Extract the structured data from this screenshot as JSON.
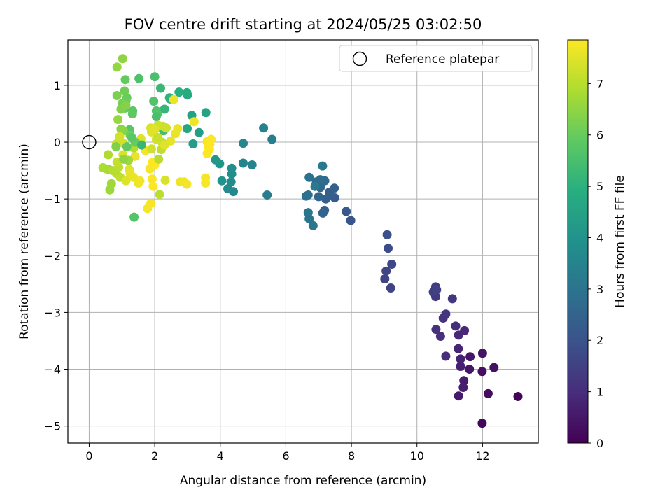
{
  "chart_data": {
    "type": "scatter",
    "title": "FOV centre drift starting at 2024/05/25 03:02:50",
    "xlabel": "Angular distance from reference (arcmin)",
    "ylabel": "Rotation from reference (arcmin)",
    "xlim": [
      -0.65,
      13.7
    ],
    "ylim": [
      -5.3,
      1.8
    ],
    "xticks": [
      0,
      2,
      4,
      6,
      8,
      10,
      12
    ],
    "yticks": [
      -5,
      -4,
      -3,
      -2,
      -1,
      0,
      1
    ],
    "grid": true,
    "legend": {
      "placement": "top-right",
      "entries": [
        "Reference platepar"
      ]
    },
    "reference_point": {
      "x": 0,
      "y": 0,
      "label": "Reference platepar"
    },
    "colorbar": {
      "label": "Hours from first FF file",
      "min": 0,
      "max": 7.85,
      "ticks": [
        0,
        1,
        2,
        3,
        4,
        5,
        6,
        7
      ],
      "colormap": "viridis"
    },
    "points": [
      [
        13.08,
        -4.48,
        0.1
      ],
      [
        11.99,
        -4.95,
        0.15
      ],
      [
        12.17,
        -4.43,
        0.25
      ],
      [
        11.99,
        -4.04,
        0.3
      ],
      [
        12.35,
        -3.97,
        0.35
      ],
      [
        12.0,
        -3.72,
        0.4
      ],
      [
        11.6,
        -4.0,
        0.45
      ],
      [
        11.62,
        -3.78,
        0.5
      ],
      [
        11.27,
        -4.47,
        0.55
      ],
      [
        11.43,
        -4.2,
        0.6
      ],
      [
        11.41,
        -4.32,
        0.65
      ],
      [
        11.33,
        -3.95,
        0.7
      ],
      [
        11.33,
        -3.82,
        0.75
      ],
      [
        11.26,
        -3.64,
        0.8
      ],
      [
        11.27,
        -3.4,
        0.85
      ],
      [
        11.45,
        -3.32,
        0.9
      ],
      [
        11.18,
        -3.24,
        0.95
      ],
      [
        10.88,
        -3.77,
        1.0
      ],
      [
        10.72,
        -3.42,
        1.05
      ],
      [
        10.58,
        -3.3,
        1.1
      ],
      [
        10.8,
        -3.1,
        1.15
      ],
      [
        10.88,
        -3.03,
        1.2
      ],
      [
        11.08,
        -2.76,
        1.25
      ],
      [
        10.57,
        -2.72,
        1.3
      ],
      [
        10.57,
        -2.55,
        1.35
      ],
      [
        10.5,
        -2.64,
        1.45
      ],
      [
        10.6,
        -2.6,
        1.5
      ],
      [
        9.2,
        -2.57,
        1.55
      ],
      [
        9.02,
        -2.41,
        1.6
      ],
      [
        9.06,
        -2.27,
        1.65
      ],
      [
        9.23,
        -2.15,
        1.7
      ],
      [
        9.12,
        -1.87,
        1.8
      ],
      [
        9.09,
        -1.63,
        1.9
      ],
      [
        7.98,
        -1.38,
        2.05
      ],
      [
        7.84,
        -1.22,
        2.15
      ],
      [
        7.49,
        -0.98,
        2.25
      ],
      [
        7.33,
        -0.88,
        2.3
      ],
      [
        7.48,
        -0.81,
        2.35
      ],
      [
        7.22,
        -1.0,
        2.4
      ],
      [
        7.18,
        -1.2,
        2.45
      ],
      [
        7.13,
        -1.25,
        2.5
      ],
      [
        7.0,
        -0.96,
        2.55
      ],
      [
        7.05,
        -0.8,
        2.6
      ],
      [
        7.08,
        -0.72,
        2.65
      ],
      [
        7.19,
        -0.68,
        2.7
      ],
      [
        6.93,
        -0.7,
        2.75
      ],
      [
        7.05,
        -0.66,
        2.8
      ],
      [
        6.68,
        -0.93,
        2.85
      ],
      [
        6.62,
        -0.95,
        2.9
      ],
      [
        6.71,
        -0.62,
        2.95
      ],
      [
        6.71,
        -1.35,
        3.0
      ],
      [
        6.68,
        -1.24,
        3.05
      ],
      [
        6.83,
        -1.47,
        3.1
      ],
      [
        6.89,
        -0.78,
        3.15
      ],
      [
        7.12,
        -0.42,
        3.2
      ],
      [
        5.43,
        -0.93,
        3.3
      ],
      [
        5.58,
        0.05,
        3.35
      ],
      [
        5.32,
        0.25,
        3.4
      ],
      [
        4.97,
        -0.4,
        3.5
      ],
      [
        4.7,
        -0.37,
        3.55
      ],
      [
        4.7,
        -0.02,
        3.6
      ],
      [
        4.4,
        -0.87,
        3.65
      ],
      [
        4.23,
        -0.82,
        3.7
      ],
      [
        4.33,
        -0.7,
        3.75
      ],
      [
        4.35,
        -0.56,
        3.8
      ],
      [
        4.35,
        -0.46,
        3.85
      ],
      [
        4.05,
        -0.68,
        3.95
      ],
      [
        3.98,
        -0.38,
        4.05
      ],
      [
        3.85,
        -0.31,
        4.15
      ],
      [
        3.17,
        -0.03,
        4.3
      ],
      [
        3.35,
        0.17,
        4.4
      ],
      [
        3.13,
        0.47,
        4.5
      ],
      [
        3.56,
        0.52,
        4.55
      ],
      [
        2.99,
        0.24,
        4.65
      ],
      [
        3.0,
        0.83,
        4.75
      ],
      [
        2.98,
        0.87,
        4.8
      ],
      [
        2.74,
        0.88,
        4.9
      ],
      [
        2.45,
        0.78,
        5.0
      ],
      [
        2.47,
        0.76,
        5.05
      ],
      [
        2.3,
        0.58,
        5.15
      ],
      [
        2.18,
        0.95,
        5.25
      ],
      [
        2.27,
        0.2,
        5.4
      ],
      [
        2.0,
        1.15,
        5.55
      ],
      [
        1.52,
        1.12,
        5.6
      ],
      [
        1.97,
        0.72,
        5.65
      ],
      [
        1.37,
        -1.32,
        5.7
      ],
      [
        1.23,
        0.22,
        5.75
      ],
      [
        1.33,
        0.55,
        5.8
      ],
      [
        1.32,
        0.5,
        5.85
      ],
      [
        1.1,
        0.6,
        5.9
      ],
      [
        1.1,
        1.1,
        5.95
      ],
      [
        1.15,
        0.78,
        6.0
      ],
      [
        1.12,
        0.72,
        6.05
      ],
      [
        1.08,
        0.9,
        6.1
      ],
      [
        1.03,
        0.62,
        6.15
      ],
      [
        1.0,
        0.68,
        6.2
      ],
      [
        0.85,
        0.82,
        6.25
      ],
      [
        0.97,
        0.58,
        6.3
      ],
      [
        1.12,
        0.65,
        6.35
      ],
      [
        1.05,
        0.2,
        6.4
      ],
      [
        0.97,
        0.23,
        6.45
      ],
      [
        1.02,
        1.47,
        6.5
      ],
      [
        0.85,
        1.32,
        6.55
      ],
      [
        0.88,
        0.4,
        6.6
      ],
      [
        0.63,
        -0.84,
        6.65
      ],
      [
        0.68,
        -0.73,
        6.7
      ],
      [
        0.6,
        -0.48,
        6.75
      ],
      [
        0.52,
        -0.47,
        6.8
      ],
      [
        0.42,
        -0.45,
        6.85
      ],
      [
        0.58,
        -0.22,
        6.9
      ],
      [
        0.72,
        -0.5,
        6.95
      ],
      [
        0.83,
        -0.55,
        7.0
      ],
      [
        0.9,
        -0.44,
        7.05
      ],
      [
        0.95,
        -0.62,
        7.1
      ],
      [
        0.85,
        -0.35,
        7.15
      ],
      [
        0.83,
        -0.03,
        7.2
      ],
      [
        0.93,
        0.02,
        7.25
      ],
      [
        0.93,
        0.1,
        7.3
      ],
      [
        1.05,
        -0.02,
        7.35
      ],
      [
        1.03,
        -0.22,
        7.4
      ],
      [
        1.12,
        -0.68,
        7.45
      ],
      [
        1.22,
        -0.48,
        7.5
      ],
      [
        1.25,
        -0.55,
        7.55
      ],
      [
        1.35,
        -0.62,
        7.6
      ],
      [
        1.4,
        -0.25,
        7.62
      ],
      [
        1.5,
        -0.72,
        7.65
      ],
      [
        1.55,
        -0.68,
        7.7
      ],
      [
        1.72,
        -0.15,
        7.72
      ],
      [
        1.78,
        -1.17,
        7.74
      ],
      [
        1.88,
        -1.08,
        7.76
      ],
      [
        1.85,
        -0.47,
        7.78
      ],
      [
        1.92,
        -0.65,
        7.8
      ],
      [
        1.95,
        -0.78,
        7.82
      ],
      [
        1.92,
        -0.36,
        7.84
      ],
      [
        2.0,
        -0.4,
        7.86
      ],
      [
        2.12,
        -0.3,
        7.0
      ],
      [
        2.15,
        -0.92,
        7.05
      ],
      [
        2.2,
        -0.13,
        7.1
      ],
      [
        2.22,
        0.0,
        7.15
      ],
      [
        2.25,
        0.28,
        7.2
      ],
      [
        2.35,
        0.25,
        7.25
      ],
      [
        2.1,
        0.3,
        7.3
      ],
      [
        2.05,
        0.05,
        7.35
      ],
      [
        1.88,
        0.25,
        7.4
      ],
      [
        1.9,
        0.18,
        7.45
      ],
      [
        2.0,
        0.22,
        7.5
      ],
      [
        2.48,
        0.02,
        7.55
      ],
      [
        2.7,
        0.24,
        7.6
      ],
      [
        2.63,
        0.15,
        7.62
      ],
      [
        2.58,
        0.75,
        7.64
      ],
      [
        3.2,
        0.36,
        7.66
      ],
      [
        2.78,
        -0.7,
        7.68
      ],
      [
        2.9,
        -0.7,
        7.7
      ],
      [
        2.98,
        -0.74,
        7.72
      ],
      [
        3.55,
        -0.63,
        7.74
      ],
      [
        3.55,
        -0.72,
        7.76
      ],
      [
        3.6,
        0.01,
        7.78
      ],
      [
        3.68,
        -0.04,
        7.8
      ],
      [
        3.72,
        0.05,
        7.82
      ],
      [
        3.6,
        -0.2,
        7.84
      ],
      [
        3.67,
        -0.12,
        7.86
      ],
      [
        3.63,
        -0.08,
        7.85
      ],
      [
        2.32,
        -0.67,
        7.4
      ],
      [
        2.3,
        -0.05,
        7.5
      ],
      [
        1.58,
        0.06,
        7.45
      ],
      [
        1.9,
        -0.12,
        7.3
      ],
      [
        2.1,
        0.08,
        7.2
      ],
      [
        1.5,
        -0.03,
        7.1
      ],
      [
        1.36,
        -0.1,
        6.9
      ],
      [
        1.2,
        -0.32,
        6.7
      ],
      [
        1.05,
        -0.3,
        6.5
      ],
      [
        0.82,
        -0.08,
        6.3
      ],
      [
        1.25,
        0.12,
        6.1
      ],
      [
        1.4,
        0.0,
        6.0
      ],
      [
        1.15,
        -0.08,
        5.9
      ],
      [
        1.3,
        0.08,
        5.8
      ],
      [
        2.05,
        0.55,
        5.6
      ],
      [
        2.08,
        0.5,
        5.7
      ],
      [
        2.05,
        0.45,
        5.5
      ],
      [
        1.6,
        -0.05,
        5.2
      ]
    ]
  }
}
